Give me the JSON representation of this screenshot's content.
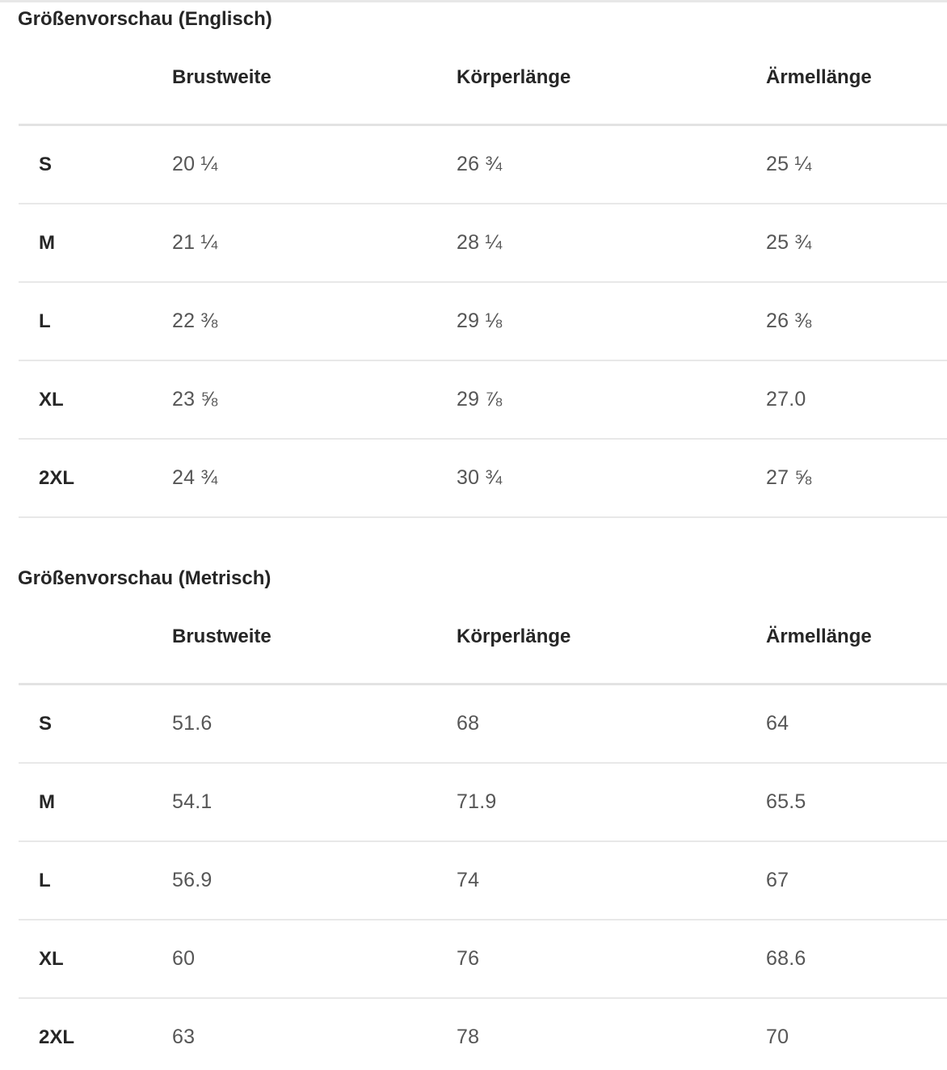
{
  "page": {
    "background": "#ffffff",
    "divider_color": "#e7e7e7",
    "heading_color": "#262626",
    "value_color": "#565656"
  },
  "tables": [
    {
      "title": "Größenvorschau (Englisch)",
      "columns": [
        "Brustweite",
        "Körperlänge",
        "Ärmellänge"
      ],
      "rows": [
        {
          "size": "S",
          "values": [
            "20 ¼",
            "26 ¾",
            "25 ¼"
          ]
        },
        {
          "size": "M",
          "values": [
            "21 ¼",
            "28 ¼",
            "25 ¾"
          ]
        },
        {
          "size": "L",
          "values": [
            "22 ⅜",
            "29 ⅛",
            "26 ⅜"
          ]
        },
        {
          "size": "XL",
          "values": [
            "23 ⅝",
            "29 ⅞",
            "27.0"
          ]
        },
        {
          "size": "2XL",
          "values": [
            "24 ¾",
            "30 ¾",
            "27 ⅝"
          ]
        }
      ]
    },
    {
      "title": "Größenvorschau (Metrisch)",
      "columns": [
        "Brustweite",
        "Körperlänge",
        "Ärmellänge"
      ],
      "rows": [
        {
          "size": "S",
          "values": [
            "51.6",
            "68",
            "64"
          ]
        },
        {
          "size": "M",
          "values": [
            "54.1",
            "71.9",
            "65.5"
          ]
        },
        {
          "size": "L",
          "values": [
            "56.9",
            "74",
            "67"
          ]
        },
        {
          "size": "XL",
          "values": [
            "60",
            "76",
            "68.6"
          ]
        },
        {
          "size": "2XL",
          "values": [
            "63",
            "78",
            "70"
          ]
        }
      ]
    }
  ]
}
